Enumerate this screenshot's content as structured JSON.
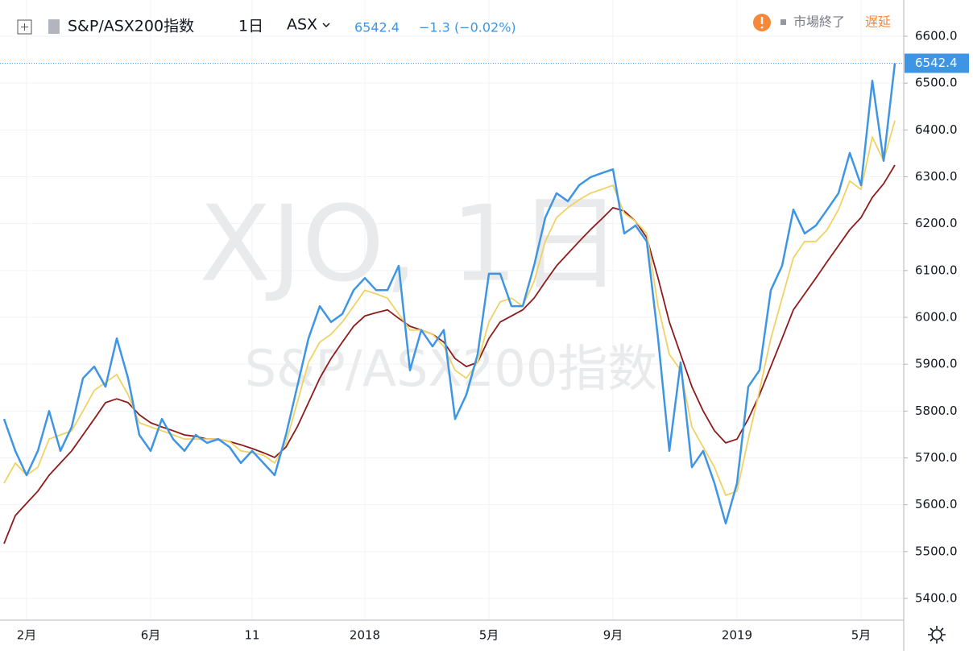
{
  "header": {
    "symbol": "S&P/ASX200指数",
    "interval": "1日",
    "exchange": "ASX",
    "change": "−1.3 (−0.02%)",
    "status": "市場終了",
    "delay": "遅延",
    "watermark_main": "XJO, 1日",
    "watermark_sub": "S&P/ASX200指数"
  },
  "chart_data": {
    "type": "line",
    "categories": [
      null,
      null,
      "2月",
      null,
      null,
      null,
      null,
      null,
      null,
      null,
      null,
      null,
      null,
      "6月",
      null,
      null,
      null,
      null,
      null,
      null,
      null,
      null,
      "11",
      null,
      null,
      null,
      null,
      null,
      null,
      null,
      null,
      null,
      "2018",
      null,
      null,
      null,
      null,
      null,
      null,
      null,
      null,
      null,
      null,
      "5月",
      null,
      null,
      null,
      null,
      null,
      null,
      null,
      null,
      null,
      null,
      "9月",
      null,
      null,
      null,
      null,
      null,
      null,
      null,
      null,
      null,
      null,
      "2019",
      null,
      null,
      null,
      null,
      null,
      null,
      null,
      null,
      null,
      null,
      "5月",
      null,
      null,
      null
    ],
    "series": [
      {
        "color": "#3d95e4",
        "values": [
          5783,
          5715,
          5663,
          5715,
          5800,
          5715,
          5766,
          5870,
          5895,
          5852,
          5955,
          5870,
          5749,
          5715,
          5783,
          5740,
          5715,
          5749,
          5732,
          5740,
          5723,
          5689,
          5715,
          5689,
          5663,
          5749,
          5852,
          5955,
          6024,
          5990,
          6007,
          6058,
          6084,
          6058,
          6058,
          6110,
          5887,
          5973,
          5938,
          5973,
          5783,
          5835,
          5921,
          6093,
          6093,
          6024,
          6024,
          6110,
          6213,
          6265,
          6248,
          6282,
          6299,
          6308,
          6316,
          6179,
          6196,
          6162,
          5955,
          5715,
          5904,
          5680,
          5715,
          5646,
          5560,
          5646,
          5852,
          5887,
          6058,
          6110,
          6230,
          6179,
          6196,
          6230,
          6265,
          6351,
          6282,
          6505,
          6334,
          6542.4
        ]
      },
      {
        "color": "#f0d264",
        "values": [
          5646,
          5689,
          5663,
          5680,
          5740,
          5749,
          5758,
          5800,
          5844,
          5861,
          5878,
          5835,
          5775,
          5766,
          5758,
          5749,
          5740,
          5740,
          5740,
          5740,
          5735,
          5715,
          5711,
          5706,
          5689,
          5732,
          5818,
          5904,
          5947,
          5964,
          5990,
          6024,
          6058,
          6050,
          6041,
          6007,
          5973,
          5973,
          5964,
          5938,
          5887,
          5870,
          5904,
          5990,
          6033,
          6041,
          6024,
          6076,
          6162,
          6213,
          6234,
          6251,
          6265,
          6273,
          6282,
          6222,
          6205,
          6179,
          6024,
          5921,
          5887,
          5766,
          5723,
          5680,
          5620,
          5629,
          5740,
          5844,
          5955,
          6041,
          6127,
          6162,
          6162,
          6187,
          6230,
          6291,
          6273,
          6385,
          6334,
          6420
        ]
      },
      {
        "color": "#8e1b1b",
        "values": [
          5517,
          5577,
          5603,
          5629,
          5663,
          5689,
          5715,
          5749,
          5783,
          5818,
          5826,
          5818,
          5792,
          5775,
          5766,
          5758,
          5749,
          5746,
          5740,
          5740,
          5735,
          5728,
          5720,
          5711,
          5701,
          5723,
          5766,
          5818,
          5870,
          5912,
          5947,
          5981,
          6003,
          6010,
          6016,
          5998,
          5981,
          5973,
          5964,
          5947,
          5912,
          5895,
          5904,
          5955,
          5990,
          6003,
          6016,
          6041,
          6076,
          6110,
          6136,
          6162,
          6187,
          6210,
          6234,
          6227,
          6205,
          6170,
          6084,
          5990,
          5921,
          5852,
          5800,
          5758,
          5732,
          5740,
          5783,
          5835,
          5895,
          5955,
          6016,
          6050,
          6084,
          6119,
          6153,
          6187,
          6213,
          6256,
          6285,
          6325
        ]
      }
    ],
    "ylim": [
      5353.6,
      6677.4
    ],
    "yticks": [
      {
        "value": 5400,
        "label": "5400.0"
      },
      {
        "value": 5500,
        "label": "5500.0"
      },
      {
        "value": 5600,
        "label": "5600.0"
      },
      {
        "value": 5700,
        "label": "5700.0"
      },
      {
        "value": 5800,
        "label": "5800.0"
      },
      {
        "value": 5900,
        "label": "5900.0"
      },
      {
        "value": 6000,
        "label": "6000.0"
      },
      {
        "value": 6100,
        "label": "6100.0"
      },
      {
        "value": 6200,
        "label": "6200.0"
      },
      {
        "value": 6300,
        "label": "6300.0"
      },
      {
        "value": 6400,
        "label": "6400.0"
      },
      {
        "value": 6500,
        "label": "6500.0"
      },
      {
        "value": 6600,
        "label": "6600.0"
      }
    ],
    "grid": true
  }
}
